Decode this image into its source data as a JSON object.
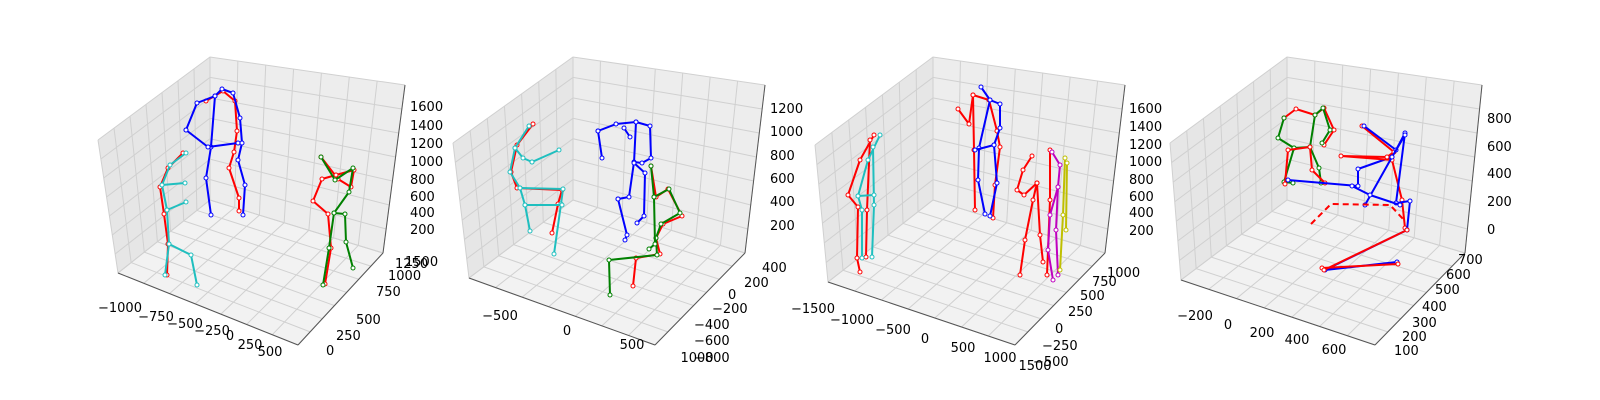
{
  "chart_data": [
    {
      "type": "scatter",
      "title": "",
      "x_ticks": [
        "−1000",
        "−750",
        "−500",
        "−250",
        "0",
        "250",
        "500"
      ],
      "y_ticks": [
        "0",
        "250",
        "500",
        "750",
        "1000",
        "1250",
        "1500"
      ],
      "z_ticks": [
        "200",
        "400",
        "600",
        "800",
        "1000",
        "1200",
        "1400",
        "1600"
      ],
      "series": [
        {
          "color": "#ff0000",
          "role": "skeleton-1"
        },
        {
          "color": "#0000ff",
          "role": "skeleton-1"
        },
        {
          "color": "#ff0000",
          "role": "skeleton-2"
        },
        {
          "color": "#008000",
          "role": "skeleton-2"
        },
        {
          "color": "#ff0000",
          "role": "skeleton-3"
        },
        {
          "color": "#1fbfbf",
          "role": "skeleton-3"
        }
      ]
    },
    {
      "type": "scatter",
      "title": "",
      "x_ticks": [
        "−500",
        "0",
        "500",
        "1000"
      ],
      "y_ticks": [
        "−800",
        "−600",
        "−400",
        "−200",
        "0",
        "200",
        "400"
      ],
      "z_ticks": [
        "200",
        "400",
        "600",
        "800",
        "1000",
        "1200"
      ],
      "series": [
        {
          "color": "#ff0000",
          "role": "skeleton-1"
        },
        {
          "color": "#0000ff",
          "role": "skeleton-1"
        },
        {
          "color": "#ff0000",
          "role": "skeleton-2"
        },
        {
          "color": "#008000",
          "role": "skeleton-2"
        },
        {
          "color": "#ff0000",
          "role": "skeleton-3"
        },
        {
          "color": "#1fbfbf",
          "role": "skeleton-3"
        }
      ]
    },
    {
      "type": "scatter",
      "title": "",
      "x_ticks": [
        "−1500",
        "−1000",
        "−500",
        "0",
        "500",
        "1000",
        "1500"
      ],
      "y_ticks": [
        "−500",
        "−250",
        "0",
        "250",
        "500",
        "750",
        "1000"
      ],
      "z_ticks": [
        "200",
        "400",
        "600",
        "800",
        "1000",
        "1200",
        "1400",
        "1600"
      ],
      "series": [
        {
          "color": "#ff0000",
          "role": "skeleton-1"
        },
        {
          "color": "#0000ff",
          "role": "skeleton-1"
        },
        {
          "color": "#ff0000",
          "role": "skeleton-2"
        },
        {
          "color": "#1fbfbf",
          "role": "skeleton-2"
        },
        {
          "color": "#ff0000",
          "role": "skeleton-3"
        },
        {
          "color": "#bf00bf",
          "role": "skeleton-3"
        },
        {
          "color": "#bfbf00",
          "role": "skeleton-3"
        }
      ]
    },
    {
      "type": "scatter",
      "title": "",
      "x_ticks": [
        "−200",
        "0",
        "200",
        "400",
        "600"
      ],
      "y_ticks": [
        "100",
        "200",
        "300",
        "400",
        "500",
        "600",
        "700"
      ],
      "z_ticks": [
        "0",
        "200",
        "400",
        "600",
        "800"
      ],
      "series": [
        {
          "color": "#ff0000",
          "role": "skeleton-1"
        },
        {
          "color": "#0000ff",
          "role": "skeleton-1"
        },
        {
          "color": "#ff0000",
          "role": "skeleton-2"
        },
        {
          "color": "#008000",
          "role": "skeleton-2"
        }
      ]
    }
  ],
  "colors": {
    "pane_left": "#e6e6e6",
    "pane_right": "#ededed",
    "pane_floor": "#f2f2f2",
    "grid": "#d0d0d0",
    "axis": "#555555"
  }
}
